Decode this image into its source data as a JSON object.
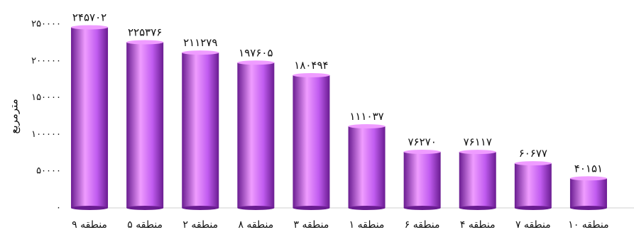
{
  "chart_data": {
    "type": "bar",
    "ylabel": "مترمربع",
    "ylim": [
      0,
      250000
    ],
    "yticks": [
      0,
      50000,
      100000,
      150000,
      200000,
      250000
    ],
    "ytick_labels": [
      "۰",
      "۵۰۰۰۰",
      "۱۰۰۰۰۰",
      "۱۵۰۰۰۰",
      "۲۰۰۰۰۰",
      "۲۵۰۰۰۰"
    ],
    "categories": [
      "منطقه ۹",
      "منطقه ۵",
      "منطقه ۲",
      "منطقه ۸",
      "منطقه ۳",
      "منطقه ۱",
      "منطقه ۶",
      "منطقه ۴",
      "منطقه ۷",
      "منطقه ۱۰"
    ],
    "values": [
      245702,
      225376,
      211279,
      197605,
      180494,
      111037,
      76270,
      76117,
      60677,
      40151
    ],
    "value_labels": [
      "۲۴۵۷۰۲",
      "۲۲۵۳۷۶",
      "۲۱۱۲۷۹",
      "۱۹۷۶۰۵",
      "۱۸۰۴۹۴",
      "۱۱۱۰۳۷",
      "۷۶۲۷۰",
      "۷۶۱۱۷",
      "۶۰۶۷۷",
      "۴۰۱۵۱"
    ],
    "grid": false,
    "legend": "none",
    "bar_color": "#c15cf0",
    "bar_highlight": "#ef9cff",
    "bar_shadow": "#6a1c91"
  }
}
